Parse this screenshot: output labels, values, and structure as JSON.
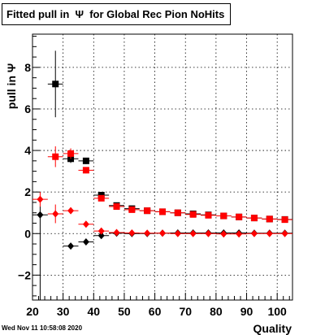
{
  "chart_data": {
    "type": "scatter",
    "title": "Fitted pull in  Ψ  for Global Rec Pion NoHits",
    "xlabel": "Quality",
    "ylabel": "pull in  Ψ",
    "xlim": [
      20,
      105
    ],
    "ylim": [
      -3.2,
      9.6
    ],
    "grid": true,
    "x_ticks": [
      20,
      30,
      40,
      50,
      60,
      70,
      80,
      90,
      100
    ],
    "y_ticks": [
      -2,
      0,
      2,
      4,
      6,
      8
    ],
    "series": [
      {
        "marker": "square",
        "color": "#000000",
        "points": [
          {
            "x": 27.5,
            "y": 7.2,
            "ylo": 5.6,
            "yhi": 8.8
          },
          {
            "x": 32.5,
            "y": 3.6,
            "ylo": 3.4,
            "yhi": 3.8
          },
          {
            "x": 37.5,
            "y": 3.5,
            "ylo": 3.35,
            "yhi": 3.65
          },
          {
            "x": 42.5,
            "y": 1.85,
            "ylo": 1.78,
            "yhi": 1.92
          },
          {
            "x": 47.5,
            "y": 1.35,
            "ylo": 1.3,
            "yhi": 1.4
          },
          {
            "x": 52.5,
            "y": 1.2,
            "ylo": 1.16,
            "yhi": 1.24
          },
          {
            "x": 57.5,
            "y": 1.1,
            "ylo": 1.06,
            "yhi": 1.14
          },
          {
            "x": 62.5,
            "y": 1.05,
            "ylo": 1.01,
            "yhi": 1.09
          },
          {
            "x": 67.5,
            "y": 1.0,
            "ylo": 0.97,
            "yhi": 1.03
          },
          {
            "x": 72.5,
            "y": 0.95,
            "ylo": 0.92,
            "yhi": 0.98
          },
          {
            "x": 77.5,
            "y": 0.9,
            "ylo": 0.87,
            "yhi": 0.93
          },
          {
            "x": 82.5,
            "y": 0.85,
            "ylo": 0.82,
            "yhi": 0.88
          },
          {
            "x": 87.5,
            "y": 0.8,
            "ylo": 0.77,
            "yhi": 0.83
          },
          {
            "x": 92.5,
            "y": 0.75,
            "ylo": 0.72,
            "yhi": 0.78
          },
          {
            "x": 97.5,
            "y": 0.7,
            "ylo": 0.67,
            "yhi": 0.73
          },
          {
            "x": 102.5,
            "y": 0.68,
            "ylo": 0.65,
            "yhi": 0.71
          }
        ]
      },
      {
        "marker": "square",
        "color": "#ff0000",
        "points": [
          {
            "x": 27.5,
            "y": 3.7,
            "ylo": 3.2,
            "yhi": 4.2
          },
          {
            "x": 32.5,
            "y": 3.85,
            "ylo": 3.6,
            "yhi": 4.1
          },
          {
            "x": 37.5,
            "y": 3.05,
            "ylo": 2.9,
            "yhi": 3.2
          },
          {
            "x": 42.5,
            "y": 1.7,
            "ylo": 1.6,
            "yhi": 1.8
          },
          {
            "x": 47.5,
            "y": 1.3,
            "ylo": 1.24,
            "yhi": 1.36
          },
          {
            "x": 52.5,
            "y": 1.15,
            "ylo": 1.1,
            "yhi": 1.2
          },
          {
            "x": 57.5,
            "y": 1.1,
            "ylo": 1.05,
            "yhi": 1.15
          },
          {
            "x": 62.5,
            "y": 1.05,
            "ylo": 1.0,
            "yhi": 1.1
          },
          {
            "x": 67.5,
            "y": 1.0,
            "ylo": 0.96,
            "yhi": 1.04
          },
          {
            "x": 72.5,
            "y": 0.92,
            "ylo": 0.88,
            "yhi": 0.96
          },
          {
            "x": 77.5,
            "y": 0.88,
            "ylo": 0.84,
            "yhi": 0.92
          },
          {
            "x": 82.5,
            "y": 0.85,
            "ylo": 0.81,
            "yhi": 0.89
          },
          {
            "x": 87.5,
            "y": 0.8,
            "ylo": 0.76,
            "yhi": 0.84
          },
          {
            "x": 92.5,
            "y": 0.75,
            "ylo": 0.71,
            "yhi": 0.79
          },
          {
            "x": 97.5,
            "y": 0.7,
            "ylo": 0.66,
            "yhi": 0.74
          },
          {
            "x": 102.5,
            "y": 0.67,
            "ylo": 0.63,
            "yhi": 0.71
          }
        ]
      },
      {
        "marker": "diamond",
        "color": "#000000",
        "points": [
          {
            "x": 22.5,
            "y": 0.9,
            "ylo": -3.2,
            "yhi": 1.3
          },
          {
            "x": 32.5,
            "y": -0.6,
            "ylo": -0.7,
            "yhi": -0.5
          },
          {
            "x": 37.5,
            "y": -0.4,
            "ylo": -0.47,
            "yhi": -0.33
          },
          {
            "x": 42.5,
            "y": -0.1,
            "ylo": -0.15,
            "yhi": -0.05
          },
          {
            "x": 47.5,
            "y": 0.02,
            "ylo": -0.01,
            "yhi": 0.05
          },
          {
            "x": 52.5,
            "y": 0.0,
            "ylo": -0.03,
            "yhi": 0.03
          },
          {
            "x": 57.5,
            "y": 0.0,
            "ylo": -0.03,
            "yhi": 0.03
          },
          {
            "x": 62.5,
            "y": 0.02,
            "ylo": -0.01,
            "yhi": 0.05
          },
          {
            "x": 67.5,
            "y": 0.03,
            "ylo": 0.0,
            "yhi": 0.06
          },
          {
            "x": 72.5,
            "y": 0.03,
            "ylo": 0.0,
            "yhi": 0.06
          },
          {
            "x": 77.5,
            "y": 0.03,
            "ylo": 0.0,
            "yhi": 0.06
          },
          {
            "x": 82.5,
            "y": 0.03,
            "ylo": 0.0,
            "yhi": 0.06
          },
          {
            "x": 87.5,
            "y": 0.03,
            "ylo": 0.0,
            "yhi": 0.06
          },
          {
            "x": 92.5,
            "y": 0.02,
            "ylo": -0.01,
            "yhi": 0.05
          },
          {
            "x": 97.5,
            "y": 0.02,
            "ylo": -0.01,
            "yhi": 0.05
          },
          {
            "x": 102.5,
            "y": 0.02,
            "ylo": -0.01,
            "yhi": 0.05
          }
        ]
      },
      {
        "marker": "diamond",
        "color": "#ff0000",
        "points": [
          {
            "x": 22.5,
            "y": 1.65,
            "ylo": 1.3,
            "yhi": 2.0
          },
          {
            "x": 27.5,
            "y": 0.95,
            "ylo": 0.5,
            "yhi": 1.4
          },
          {
            "x": 32.5,
            "y": 1.1,
            "ylo": 0.95,
            "yhi": 1.25
          },
          {
            "x": 37.5,
            "y": 0.45,
            "ylo": 0.35,
            "yhi": 0.55
          },
          {
            "x": 42.5,
            "y": 0.12,
            "ylo": 0.05,
            "yhi": 0.19
          },
          {
            "x": 47.5,
            "y": 0.05,
            "ylo": 0.01,
            "yhi": 0.09
          },
          {
            "x": 52.5,
            "y": 0.03,
            "ylo": 0.0,
            "yhi": 0.06
          },
          {
            "x": 57.5,
            "y": 0.02,
            "ylo": -0.01,
            "yhi": 0.05
          },
          {
            "x": 62.5,
            "y": 0.02,
            "ylo": -0.01,
            "yhi": 0.05
          },
          {
            "x": 67.5,
            "y": 0.0,
            "ylo": -0.03,
            "yhi": 0.03
          },
          {
            "x": 72.5,
            "y": 0.0,
            "ylo": -0.03,
            "yhi": 0.03
          },
          {
            "x": 77.5,
            "y": 0.0,
            "ylo": -0.03,
            "yhi": 0.03
          },
          {
            "x": 82.5,
            "y": -0.02,
            "ylo": -0.05,
            "yhi": 0.01
          },
          {
            "x": 87.5,
            "y": -0.02,
            "ylo": -0.05,
            "yhi": 0.01
          },
          {
            "x": 92.5,
            "y": 0.0,
            "ylo": -0.03,
            "yhi": 0.03
          },
          {
            "x": 97.5,
            "y": 0.0,
            "ylo": -0.03,
            "yhi": 0.03
          },
          {
            "x": 102.5,
            "y": 0.0,
            "ylo": -0.03,
            "yhi": 0.03
          }
        ]
      }
    ]
  },
  "footer": {
    "timestamp": "Wed Nov 11 10:58:08 2020"
  }
}
